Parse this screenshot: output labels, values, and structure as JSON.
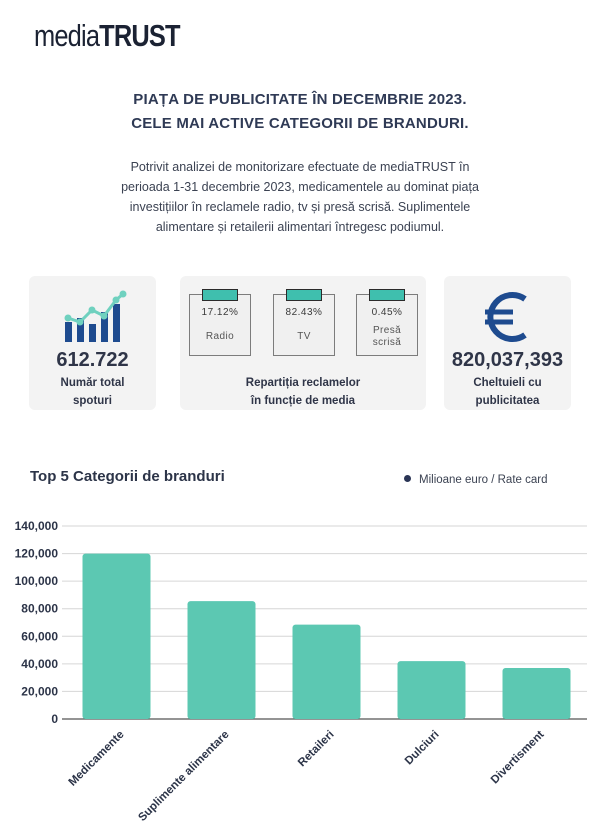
{
  "logo": {
    "part1": "media",
    "part2": "TRUST"
  },
  "headline": {
    "line1": "PIAȚA DE PUBLICITATE ÎN DECEMBRIE 2023.",
    "line2": "CELE MAI ACTIVE CATEGORII DE BRANDURI."
  },
  "intro": "Potrivit analizei de monitorizare efectuate de mediaTRUST în perioada 1-31 decembrie 2023, medicamentele au dominat piața investițiilor în reclamele radio, tv și presă scrisă.  Suplimentele alimentare și retailerii alimentari întregesc podiumul.",
  "stats": {
    "spots": {
      "value": "612.722",
      "label_line1": "Număr total",
      "label_line2": "spoturi",
      "icon": "growth-chart-icon"
    },
    "media": {
      "label_line1": "Repartiția reclamelor",
      "label_line2": "în funcție de media",
      "items": [
        {
          "pct": "17.12%",
          "name": "Radio",
          "name2": ""
        },
        {
          "pct": "82.43%",
          "name": "TV",
          "name2": ""
        },
        {
          "pct": "0.45%",
          "name": "Presă",
          "name2": "scrisă"
        }
      ]
    },
    "spend": {
      "value": "820,037,393",
      "label_line1": "Cheltuieli cu",
      "label_line2": "publicitatea",
      "icon": "euro-icon"
    }
  },
  "colors": {
    "bar": "#5cc8b2",
    "accent": "#3fbfae",
    "navy": "#1e4b8f"
  },
  "chart_data": {
    "type": "bar",
    "title": "Top 5 Categorii de branduri",
    "legend": "Milioane euro / Rate card",
    "categories": [
      "Medicamente",
      "Suplimente alimentare",
      "Retaileri",
      "Dulciuri",
      "Divertisment"
    ],
    "values": [
      120000,
      85500,
      68500,
      42000,
      37000
    ],
    "ylim": [
      0,
      140000
    ],
    "yticks": [
      "0",
      "20,000",
      "40,000",
      "60,000",
      "80,000",
      "100,000",
      "120,000",
      "140,000"
    ],
    "grid": true
  }
}
